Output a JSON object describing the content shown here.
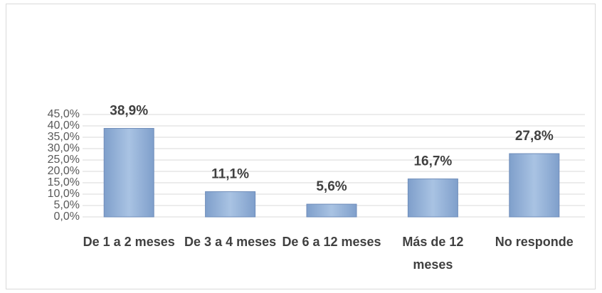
{
  "chart_data": {
    "type": "bar",
    "categories": [
      "De 1 a 2 meses",
      "De 3 a 4 meses",
      "De 6 a 12 meses",
      "Más de 12 meses",
      "No responde"
    ],
    "values": [
      38.9,
      11.1,
      5.6,
      16.7,
      27.8
    ],
    "value_labels": [
      "38,9%",
      "11,1%",
      "5,6%",
      "16,7%",
      "27,8%"
    ],
    "color": "#95b3d7",
    "ylim": [
      0,
      45
    ],
    "yticks": [
      {
        "value": 0,
        "label": "0,0%"
      },
      {
        "value": 5,
        "label": "5,0%"
      },
      {
        "value": 10,
        "label": "10,0%"
      },
      {
        "value": 15,
        "label": "15,0%"
      },
      {
        "value": 20,
        "label": "20,0%"
      },
      {
        "value": 25,
        "label": "25,0%"
      },
      {
        "value": 30,
        "label": "30,0%"
      },
      {
        "value": 35,
        "label": "35,0%"
      },
      {
        "value": 40,
        "label": "40,0%"
      },
      {
        "value": 45,
        "label": "45,0%"
      }
    ],
    "grid": true
  }
}
